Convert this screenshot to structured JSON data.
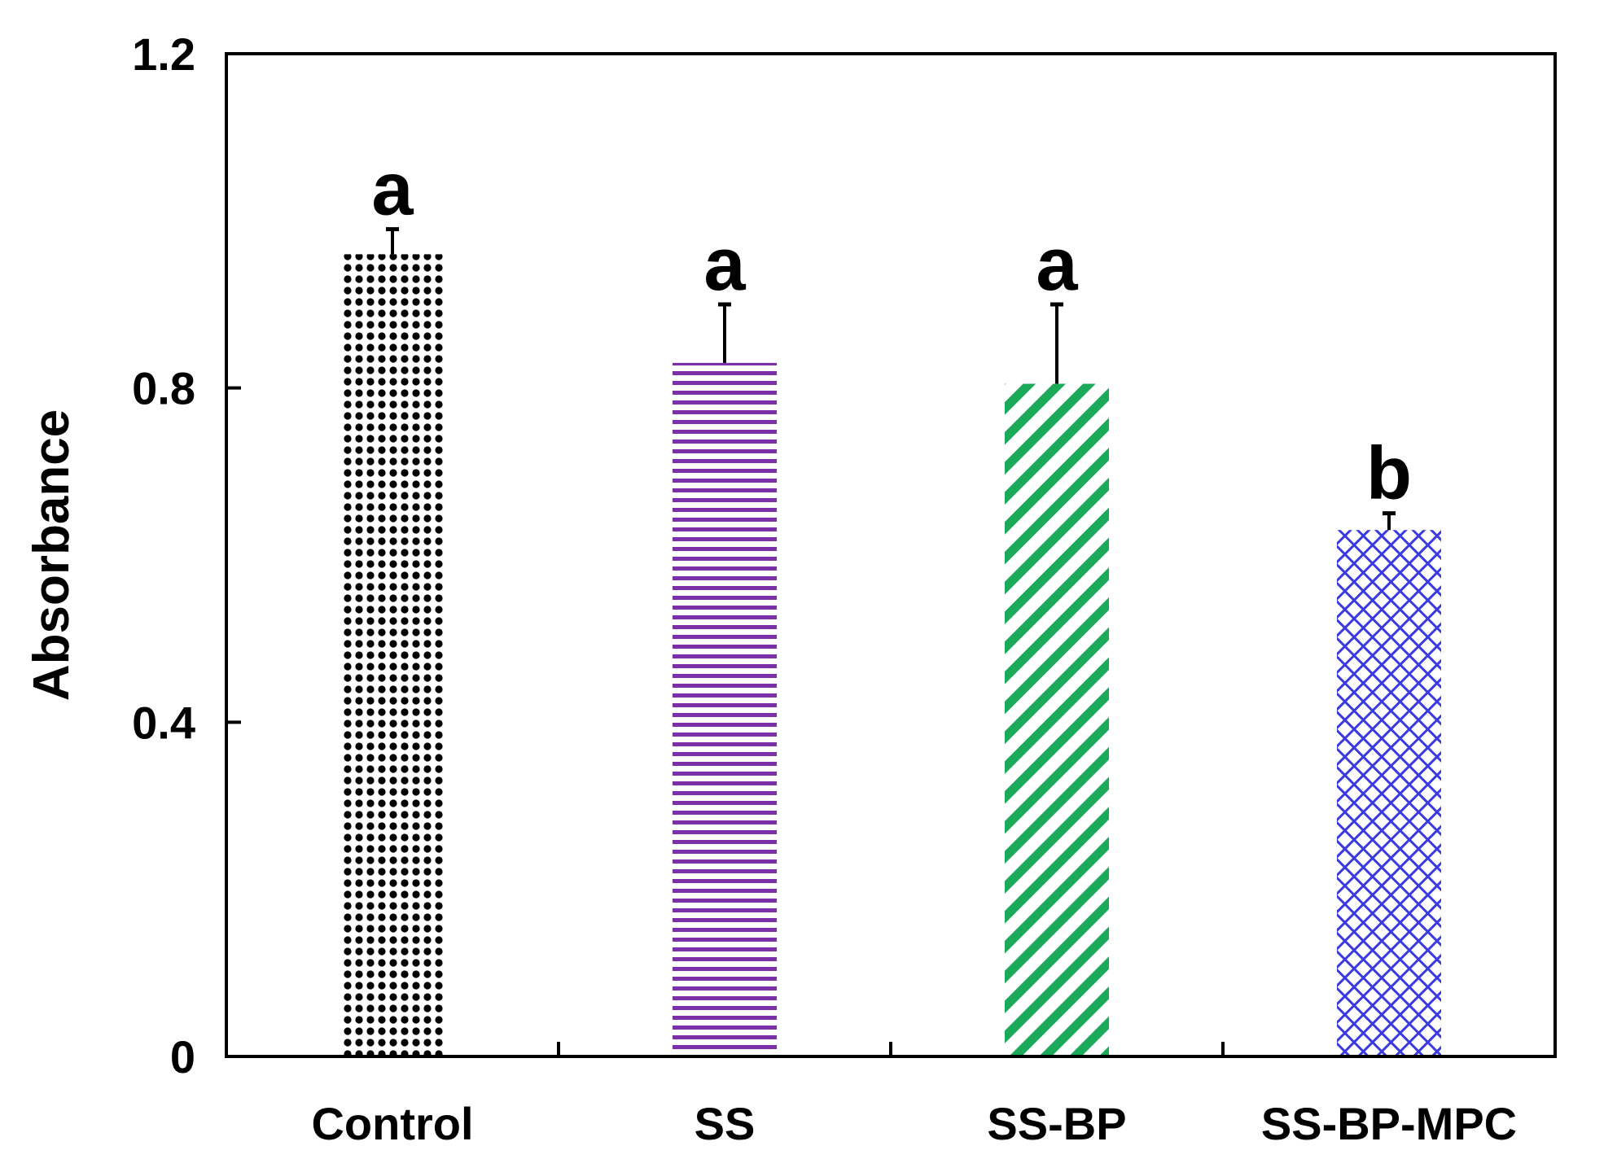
{
  "chart_data": {
    "type": "bar",
    "title": "",
    "xlabel": "",
    "ylabel": "Absorbance",
    "ylim": [
      0,
      1.2
    ],
    "yticks": [
      0,
      0.4,
      0.8,
      1.2
    ],
    "ytick_labels": [
      "0",
      "0.4",
      "0.8",
      "1.2"
    ],
    "categories": [
      "Control",
      "SS",
      "SS-BP",
      "SS-BP-MPC"
    ],
    "values": [
      0.96,
      0.83,
      0.805,
      0.63
    ],
    "errors": [
      0.03,
      0.07,
      0.095,
      0.02
    ],
    "significance": [
      "a",
      "a",
      "a",
      "b"
    ],
    "colors": [
      "#000000",
      "#7b2fa8",
      "#1aaa5a",
      "#3a3ae0"
    ],
    "patterns": [
      "dots",
      "horizontal-lines",
      "diagonal-lines",
      "crosshatch"
    ],
    "grid": false,
    "legend": "none"
  }
}
